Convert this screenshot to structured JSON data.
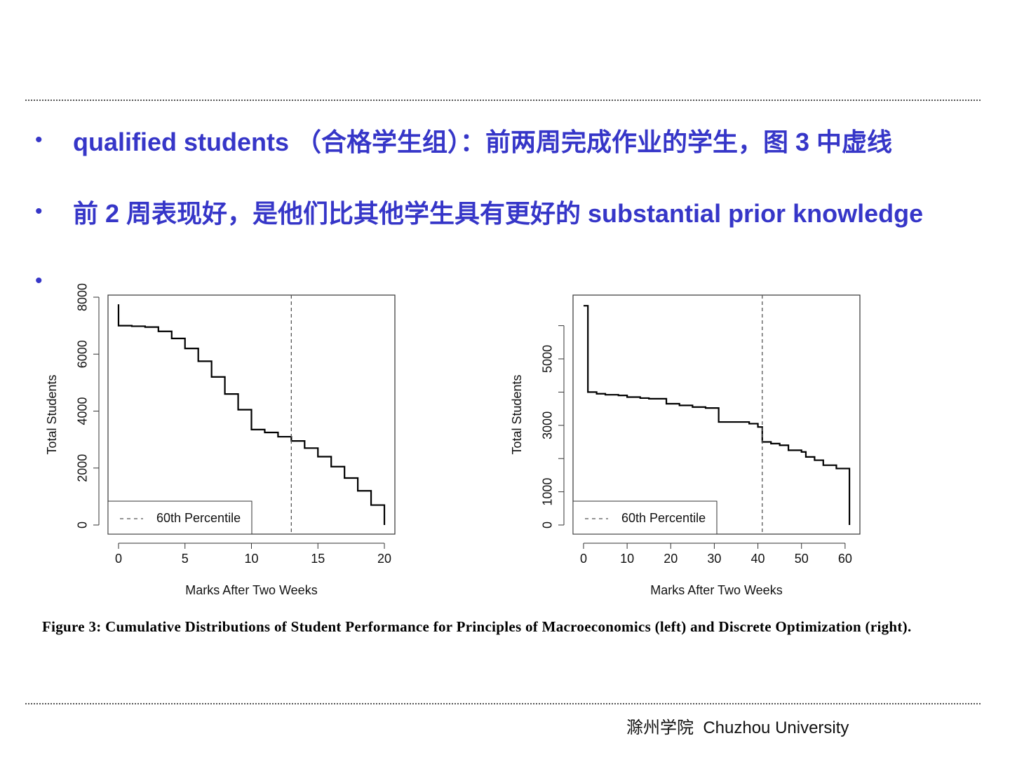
{
  "bullets": [
    "qualified students （合格学生组）：前两周完成作业的学生，图 3 中虚线",
    "前 2 周表现好，是他们比其他学生具有更好的 substantial prior knowledge"
  ],
  "chart_data": [
    {
      "type": "step",
      "ylabel": "Total Students",
      "xlabel": "Marks After Two Weeks",
      "x": [
        0,
        0,
        1,
        2,
        3,
        4,
        5,
        6,
        7,
        8,
        9,
        10,
        11,
        12,
        13,
        14,
        15,
        16,
        17,
        18,
        19,
        20
      ],
      "values": [
        7750,
        7000,
        6980,
        6950,
        6800,
        6550,
        6200,
        5750,
        5200,
        4600,
        4050,
        3350,
        3250,
        3100,
        2950,
        2700,
        2400,
        2050,
        1650,
        1200,
        700,
        0
      ],
      "color": "#000000",
      "xlim": [
        -0.79,
        20.79
      ],
      "ylim": [
        -320,
        8074
      ],
      "xticks": [
        0,
        5,
        10,
        15,
        20
      ],
      "yticks": [
        0,
        2000,
        4000,
        6000,
        8000
      ],
      "vline": {
        "x": 13,
        "label": "60th Percentile"
      }
    },
    {
      "type": "step",
      "ylabel": "Total Students",
      "xlabel": "Marks After Two Weeks",
      "x": [
        0,
        1,
        3,
        5,
        8,
        10,
        13,
        15,
        19,
        22,
        25,
        28,
        31,
        38,
        40,
        41,
        43,
        45,
        47,
        50,
        51,
        53,
        55,
        58,
        61
      ],
      "values": [
        6600,
        4000,
        3950,
        3920,
        3900,
        3850,
        3820,
        3800,
        3650,
        3600,
        3550,
        3520,
        3100,
        3050,
        2950,
        2500,
        2450,
        2400,
        2250,
        2200,
        2050,
        1950,
        1800,
        1700,
        0
      ],
      "color": "#000000",
      "xlim": [
        -2.41,
        63.4
      ],
      "ylim": [
        -274,
        6920
      ],
      "xticks": [
        0,
        10,
        20,
        30,
        40,
        50,
        60
      ],
      "yticks": [
        0,
        1000,
        3000,
        5000
      ],
      "minor_yticks": [
        2000,
        4000,
        6000
      ],
      "vline": {
        "x": 41,
        "label": "60th Percentile"
      }
    }
  ],
  "caption": "Figure 3: Cumulative Distributions of Student Performance for Principles of Macroeconomics (left) and Discrete Optimization (right).",
  "footer": "滁州学院  Chuzhou University"
}
